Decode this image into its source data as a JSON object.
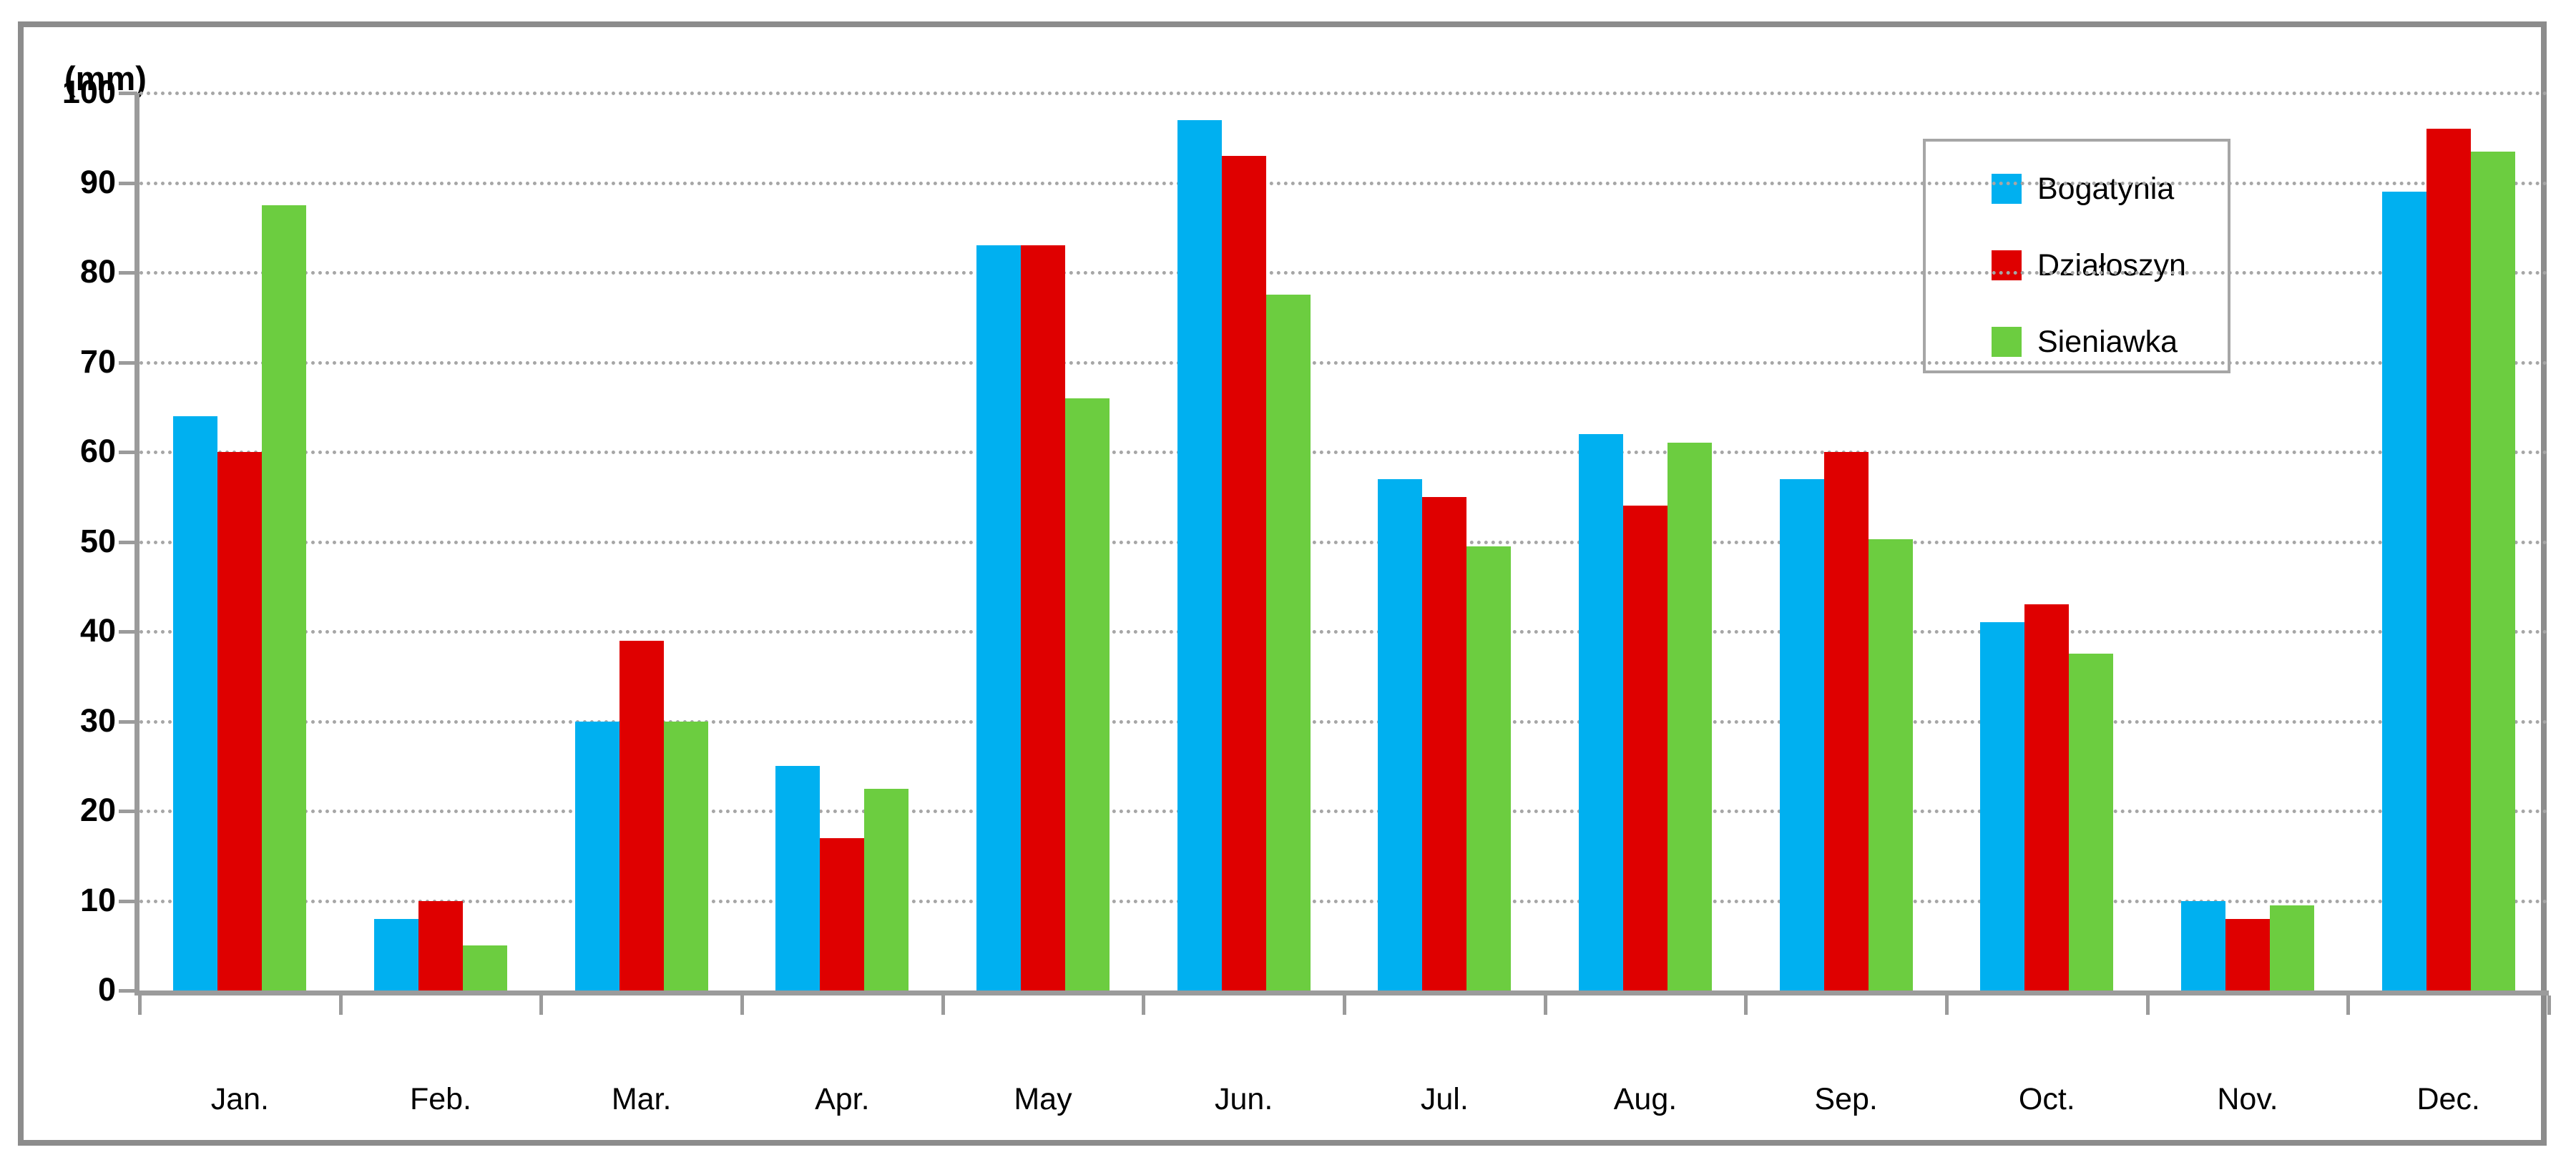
{
  "chart_data": {
    "type": "bar",
    "title": "",
    "xlabel": "",
    "ylabel": "(mm)",
    "ylim": [
      0,
      100
    ],
    "yticks": [
      0,
      10,
      20,
      30,
      40,
      50,
      60,
      70,
      80,
      90,
      100
    ],
    "grid": "horizontal dotted gray lines",
    "legend_position": "top-right",
    "categories": [
      "Jan.",
      "Feb.",
      "Mar.",
      "Apr.",
      "May",
      "Jun.",
      "Jul.",
      "Aug.",
      "Sep.",
      "Oct.",
      "Nov.",
      "Dec."
    ],
    "series": [
      {
        "name": "Bogatynia",
        "color": "#00b0f0",
        "values": [
          64,
          8,
          30,
          25,
          83,
          97,
          57,
          62,
          57,
          41,
          10,
          89
        ]
      },
      {
        "name": "Działoszyn",
        "color": "#df0000",
        "values": [
          60,
          10,
          39,
          17,
          83,
          93,
          55,
          54,
          60,
          43,
          8,
          96
        ]
      },
      {
        "name": "Sieniawka",
        "color": "#6ccd40",
        "values": [
          87.5,
          5,
          30,
          22.5,
          66,
          77.5,
          49.5,
          61,
          50.3,
          37.5,
          9.5,
          93.5
        ]
      }
    ],
    "colors": {
      "grid": "#a6a6a6",
      "axis": "#9b9b9b",
      "frame": "#8c8c8c",
      "text": "#000000",
      "background": "#ffffff"
    }
  }
}
